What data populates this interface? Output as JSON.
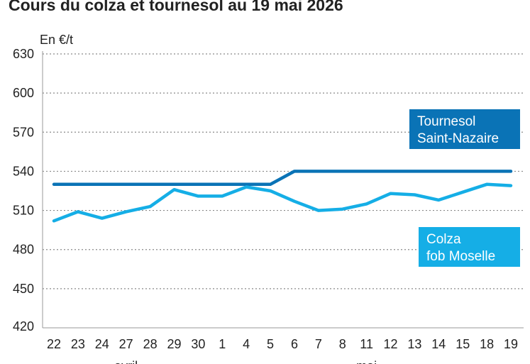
{
  "chart_data": {
    "type": "line",
    "title": "Cours du colza et tournesol au 19 mai 2026",
    "ylabel": "En €/t",
    "ylim": [
      420,
      630
    ],
    "yticks": [
      420,
      450,
      480,
      510,
      540,
      570,
      600,
      630
    ],
    "grid": true,
    "categories": [
      "22",
      "23",
      "24",
      "27",
      "28",
      "29",
      "30",
      "1",
      "4",
      "5",
      "6",
      "7",
      "8",
      "11",
      "12",
      "13",
      "14",
      "15",
      "18",
      "19"
    ],
    "month_labels": [
      {
        "label": "avril",
        "category_index": 3
      },
      {
        "label": "mai",
        "category_index": 13
      }
    ],
    "series": [
      {
        "name": "Tournesol Saint-Nazaire",
        "legend_lines": [
          "Tournesol",
          "Saint-Nazaire"
        ],
        "legend_position": "right, upper",
        "color": "#0a73b6",
        "values": [
          530,
          530,
          530,
          530,
          530,
          530,
          530,
          530,
          530,
          530,
          540,
          540,
          540,
          540,
          540,
          540,
          540,
          540,
          540,
          540
        ]
      },
      {
        "name": "Colza fob Moselle",
        "legend_lines": [
          "Colza",
          "fob Moselle"
        ],
        "legend_position": "right, middle",
        "color": "#15aee6",
        "values": [
          502,
          509,
          504,
          509,
          513,
          526,
          521,
          521,
          528,
          525,
          517,
          510,
          511,
          515,
          523,
          522,
          518,
          524,
          530,
          529
        ]
      }
    ]
  }
}
